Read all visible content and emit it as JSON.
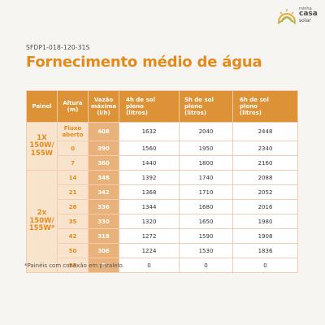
{
  "brand": {
    "line1": "minha",
    "line2": "casa",
    "line3": "solar",
    "colors": {
      "sun": "#e9a838",
      "house": "#9fbf4f"
    }
  },
  "product_code": "SFDP1-018-120-31S",
  "title": "Fornecimento médio de água",
  "table": {
    "headers": {
      "painel": "Painel",
      "altura": "Altura",
      "altura_unit": "(m)",
      "vazao": "Vazão",
      "vazao_2": "máxima",
      "vazao_unit": "(l/h)",
      "h4": "4h de sol",
      "h4_2": "pleno",
      "h4_unit": "(litros)",
      "h5": "5h de sol",
      "h5_2": "pleno",
      "h5_unit": "(litros)",
      "h6": "6h de sol",
      "h6_2": "pleno",
      "h6_unit": "(litros)"
    },
    "groups": [
      {
        "line1": "1X",
        "line2": "150W/",
        "line3": "155W"
      },
      {
        "line1": "2x",
        "line2": "150W/",
        "line3": "155W*"
      }
    ],
    "rows": [
      {
        "altura": "Fluxo",
        "altura_2": "aberto",
        "vazao": "408",
        "h4": "1632",
        "h5": "2040",
        "h6": "2448"
      },
      {
        "altura": "0",
        "vazao": "390",
        "h4": "1560",
        "h5": "1950",
        "h6": "2340"
      },
      {
        "altura": "7",
        "vazao": "360",
        "h4": "1440",
        "h5": "1800",
        "h6": "2160"
      },
      {
        "altura": "14",
        "vazao": "348",
        "h4": "1392",
        "h5": "1740",
        "h6": "2088"
      },
      {
        "altura": "21",
        "vazao": "342",
        "h4": "1368",
        "h5": "1710",
        "h6": "2052"
      },
      {
        "altura": "28",
        "vazao": "336",
        "h4": "1344",
        "h5": "1680",
        "h6": "2016"
      },
      {
        "altura": "35",
        "vazao": "330",
        "h4": "1320",
        "h5": "1650",
        "h6": "1980"
      },
      {
        "altura": "42",
        "vazao": "318",
        "h4": "1272",
        "h5": "1590",
        "h6": "1908"
      },
      {
        "altura": "50",
        "vazao": "306",
        "h4": "1224",
        "h5": "1530",
        "h6": "1836"
      },
      {
        "altura": "55",
        "vazao": "0",
        "h4": "0",
        "h5": "0",
        "h6": "0"
      }
    ]
  },
  "footnote": "*Painéis com conexão em paralelo.",
  "colors": {
    "accent": "#e48a1c",
    "header_bg": "#dd9236",
    "light_bg": "#f8e3cc",
    "vazao_bg": "#e9b27a",
    "page_bg": "#f7f5f2"
  }
}
